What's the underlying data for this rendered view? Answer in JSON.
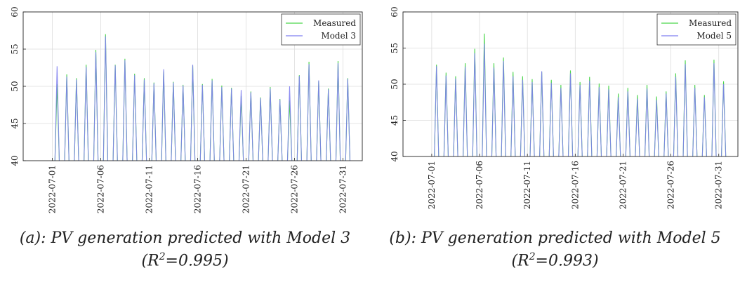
{
  "chart_data": [
    {
      "type": "line",
      "ylim": [
        40,
        60
      ],
      "yticks": [
        40,
        45,
        50,
        55,
        60
      ],
      "xlim": [
        "2022-06-28",
        "2022-08-02"
      ],
      "xticks": [
        "2022-07-01",
        "2022-07-06",
        "2022-07-11",
        "2022-07-16",
        "2022-07-21",
        "2022-07-26",
        "2022-07-31"
      ],
      "grid": true,
      "legend_position": "top-right",
      "series": [
        {
          "name": "Measured",
          "color": "#4cd64c",
          "daily_peaks": [
            50.3,
            51.6,
            51.1,
            52.9,
            54.9,
            57.0,
            52.9,
            53.7,
            51.7,
            51.1,
            50.5,
            52.0,
            50.6,
            50.2,
            52.8,
            50.3,
            51.0,
            50.1,
            49.8,
            48.7,
            49.3,
            48.5,
            49.9,
            48.3,
            48.1,
            51.5,
            53.3,
            50.7,
            49.7,
            53.4,
            51.1
          ]
        },
        {
          "name": "Model 3",
          "color": "#7f7ff0",
          "daily_peaks": [
            52.7,
            51.3,
            50.9,
            52.6,
            54.6,
            56.7,
            52.8,
            53.5,
            51.5,
            50.9,
            50.4,
            52.3,
            50.5,
            50.1,
            52.9,
            50.2,
            50.8,
            49.9,
            49.7,
            49.5,
            49.2,
            48.4,
            49.7,
            48.2,
            50.0,
            51.4,
            53.0,
            50.8,
            49.6,
            53.1,
            51.0
          ]
        }
      ],
      "caption_prefix": "(a): PV generation predicted with Model 3",
      "caption_r2_value": "=0.995)"
    },
    {
      "type": "line",
      "ylim": [
        40,
        60
      ],
      "yticks": [
        40,
        45,
        50,
        55,
        60
      ],
      "xlim": [
        "2022-06-28",
        "2022-08-02"
      ],
      "xticks": [
        "2022-07-01",
        "2022-07-06",
        "2022-07-11",
        "2022-07-16",
        "2022-07-21",
        "2022-07-26",
        "2022-07-31"
      ],
      "grid": true,
      "legend_position": "top-right",
      "series": [
        {
          "name": "Measured",
          "color": "#4cd64c",
          "daily_peaks": [
            52.7,
            51.6,
            51.1,
            52.9,
            54.9,
            57.0,
            52.9,
            53.7,
            51.7,
            51.1,
            50.7,
            51.7,
            50.6,
            49.9,
            51.9,
            50.3,
            51.0,
            50.1,
            49.8,
            48.7,
            49.5,
            48.5,
            49.9,
            48.3,
            49.0,
            51.5,
            53.3,
            49.9,
            48.5,
            53.4,
            50.4
          ]
        },
        {
          "name": "Model 5",
          "color": "#7f7ff0",
          "daily_peaks": [
            52.5,
            51.2,
            50.8,
            52.4,
            54.3,
            55.6,
            52.3,
            53.2,
            51.1,
            50.6,
            50.3,
            51.8,
            50.2,
            49.5,
            51.5,
            49.9,
            50.5,
            49.6,
            49.3,
            48.2,
            49.0,
            48.0,
            49.4,
            47.8,
            48.7,
            51.0,
            52.8,
            49.5,
            48.2,
            52.9,
            50.0
          ]
        }
      ],
      "caption_prefix": "(b): PV generation predicted with Model 5",
      "caption_r2_value": "=0.993)"
    }
  ],
  "captions": {
    "a_line1": "(a): PV generation predicted with Model 3",
    "a_line2_open": "(R",
    "a_line2_sup": "2",
    "a_line2_rest": "=0.995)",
    "b_line1": "(b): PV generation predicted with Model 5",
    "b_line2_open": "(R",
    "b_line2_sup": "2",
    "b_line2_rest": "=0.993)"
  }
}
